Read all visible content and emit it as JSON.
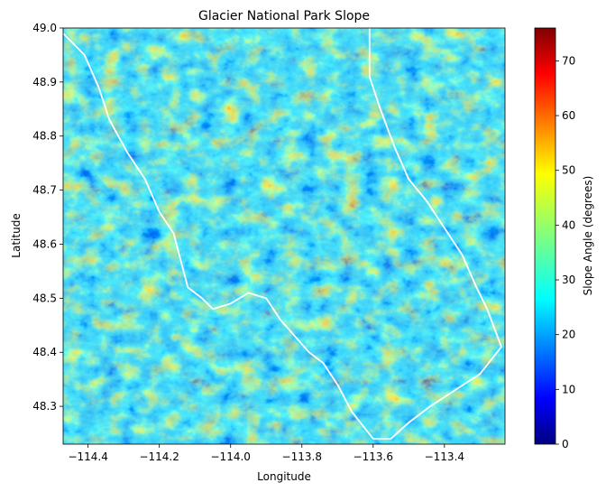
{
  "chart_data": {
    "type": "heatmap",
    "title": "Glacier National Park Slope",
    "xlabel": "Longitude",
    "ylabel": "Latitude",
    "xlim": [
      -114.47,
      -113.23
    ],
    "ylim": [
      48.23,
      49.0
    ],
    "x_ticks": [
      -114.4,
      -114.2,
      -114.0,
      -113.8,
      -113.6,
      -113.4
    ],
    "x_tick_labels": [
      "−114.4",
      "−114.2",
      "−114.0",
      "−113.8",
      "−113.6",
      "−113.4"
    ],
    "y_ticks": [
      48.3,
      48.4,
      48.5,
      48.6,
      48.7,
      48.8,
      48.9,
      49.0
    ],
    "y_tick_labels": [
      "48.3",
      "48.4",
      "48.5",
      "48.6",
      "48.7",
      "48.8",
      "48.9",
      "49.0"
    ],
    "colorbar": {
      "label": "Slope Angle (degrees)",
      "range": [
        0,
        76
      ],
      "ticks": [
        0,
        10,
        20,
        30,
        40,
        50,
        60,
        70
      ],
      "tick_labels": [
        "0",
        "10",
        "20",
        "30",
        "40",
        "50",
        "60",
        "70"
      ],
      "colormap": "jet"
    },
    "boundary": {
      "color": "#ffffff",
      "points": [
        [
          -114.47,
          48.99
        ],
        [
          -114.41,
          48.95
        ],
        [
          -114.37,
          48.89
        ],
        [
          -114.34,
          48.83
        ],
        [
          -114.29,
          48.77
        ],
        [
          -114.24,
          48.72
        ],
        [
          -114.2,
          48.66
        ],
        [
          -114.16,
          48.62
        ],
        [
          -114.14,
          48.57
        ],
        [
          -114.12,
          48.52
        ],
        [
          -114.08,
          48.5
        ],
        [
          -114.05,
          48.48
        ],
        [
          -114.0,
          48.49
        ],
        [
          -113.95,
          48.51
        ],
        [
          -113.9,
          48.5
        ],
        [
          -113.86,
          48.46
        ],
        [
          -113.82,
          48.43
        ],
        [
          -113.78,
          48.4
        ],
        [
          -113.74,
          48.38
        ],
        [
          -113.7,
          48.34
        ],
        [
          -113.66,
          48.29
        ],
        [
          -113.6,
          48.24
        ],
        [
          -113.55,
          48.24
        ],
        [
          -113.5,
          48.27
        ],
        [
          -113.44,
          48.3
        ],
        [
          -113.37,
          48.33
        ],
        [
          -113.3,
          48.36
        ],
        [
          -113.24,
          48.41
        ],
        [
          -113.28,
          48.48
        ],
        [
          -113.31,
          48.52
        ],
        [
          -113.35,
          48.58
        ],
        [
          -113.4,
          48.63
        ],
        [
          -113.45,
          48.68
        ],
        [
          -113.5,
          48.72
        ],
        [
          -113.54,
          48.78
        ],
        [
          -113.58,
          48.85
        ],
        [
          -113.61,
          48.91
        ],
        [
          -113.61,
          49.0
        ]
      ]
    },
    "colors": {
      "low": "#00008f",
      "base": "#0a2fd8",
      "mid": "#18c8f0",
      "high": "#e8f020",
      "peak": "#e02010",
      "axes": "#000000",
      "boundary": "#ffffff"
    }
  }
}
